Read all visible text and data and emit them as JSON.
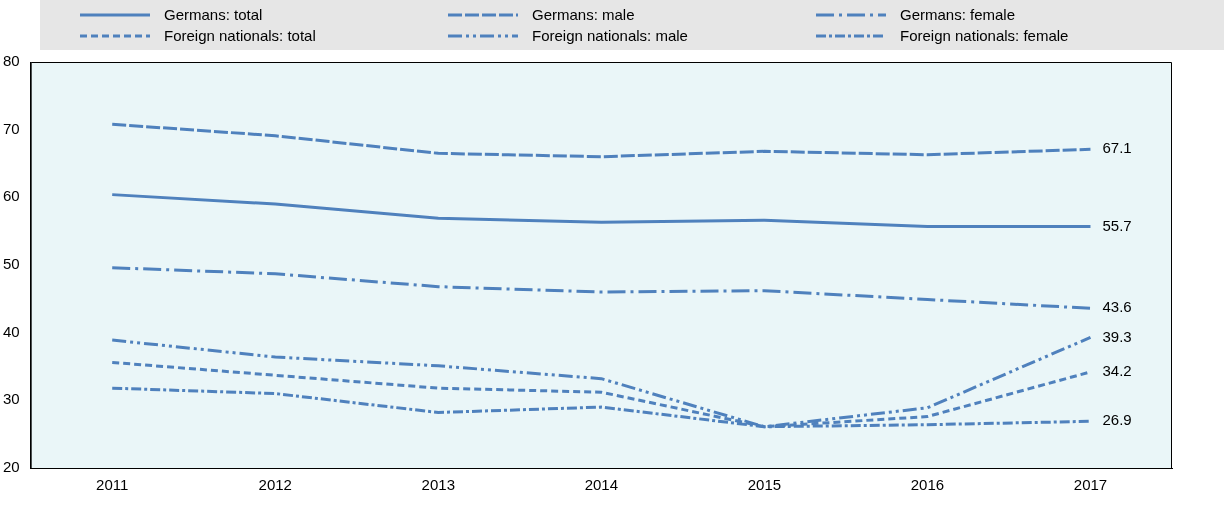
{
  "chart_data": {
    "type": "line",
    "categories": [
      "2011",
      "2012",
      "2013",
      "2014",
      "2015",
      "2016",
      "2017"
    ],
    "series": [
      {
        "name": "Germans: total",
        "color": "#4f81bd",
        "line_style": "solid",
        "values": [
          60.4,
          59.0,
          56.9,
          56.3,
          56.6,
          55.7,
          55.7
        ],
        "value_labels": [
          null,
          null,
          null,
          null,
          null,
          null,
          "55.7"
        ]
      },
      {
        "name": "Germans: male",
        "color": "#4f81bd",
        "line_style": "dashed",
        "values": [
          70.8,
          69.1,
          66.5,
          66.0,
          66.8,
          66.3,
          67.1
        ],
        "value_labels": [
          null,
          null,
          null,
          null,
          null,
          null,
          "67.1"
        ]
      },
      {
        "name": "Germans: female",
        "color": "#4f81bd",
        "line_style": "dashed",
        "values": [
          49.6,
          48.7,
          46.8,
          46.0,
          46.2,
          44.9,
          43.6
        ],
        "value_labels": [
          null,
          null,
          null,
          null,
          null,
          null,
          "43.6"
        ]
      },
      {
        "name": "Foreign nationals: total",
        "color": "#4f81bd",
        "line_style": "dashed",
        "values": [
          35.6,
          33.7,
          31.8,
          31.2,
          26.1,
          27.6,
          34.2
        ],
        "value_labels": [
          null,
          null,
          null,
          null,
          null,
          null,
          "34.2"
        ]
      },
      {
        "name": "Foreign nationals: male",
        "color": "#4f81bd",
        "line_style": "dashed",
        "values": [
          38.9,
          36.4,
          35.1,
          33.2,
          26.1,
          28.9,
          39.3
        ],
        "value_labels": [
          null,
          null,
          null,
          null,
          null,
          null,
          "39.3"
        ]
      },
      {
        "name": "Foreign nationals: female",
        "color": "#4f81bd",
        "line_style": "dashed",
        "values": [
          31.8,
          31.0,
          28.2,
          29.0,
          26.1,
          26.4,
          26.9
        ],
        "value_labels": [
          null,
          null,
          null,
          null,
          null,
          null,
          "26.9"
        ]
      }
    ],
    "ylim": [
      20,
      80
    ],
    "yticks": [
      20,
      30,
      40,
      50,
      60,
      70,
      80
    ],
    "grid": false,
    "legend": "top",
    "marker": "none"
  }
}
